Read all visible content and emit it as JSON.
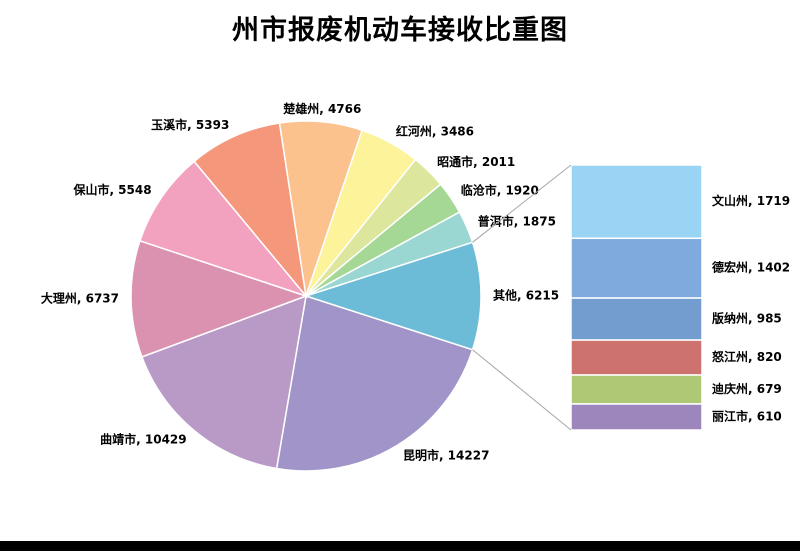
{
  "chart_data": {
    "type": "pie",
    "subtype": "bar-of-pie",
    "title": "州市报废机动车接收比重图",
    "slices": [
      {
        "name": "昆明市",
        "value": 14227,
        "color": "#a094c8"
      },
      {
        "name": "曲靖市",
        "value": 10429,
        "color": "#b99ac7"
      },
      {
        "name": "大理州",
        "value": 6737,
        "color": "#db92b1"
      },
      {
        "name": "保山市",
        "value": 5548,
        "color": "#f2a1bf"
      },
      {
        "name": "玉溪市",
        "value": 5393,
        "color": "#f4977b"
      },
      {
        "name": "楚雄州",
        "value": 4766,
        "color": "#fcc28e"
      },
      {
        "name": "红河州",
        "value": 3486,
        "color": "#fcf39b"
      },
      {
        "name": "昭通市",
        "value": 2011,
        "color": "#dce69c"
      },
      {
        "name": "临沧市",
        "value": 1920,
        "color": "#a6d895"
      },
      {
        "name": "普洱市",
        "value": 1875,
        "color": "#9ad6d2"
      },
      {
        "name": "其他",
        "value": 6215,
        "color": "#6cbcd8"
      }
    ],
    "breakout": {
      "of": "其他",
      "items": [
        {
          "name": "文山州",
          "value": 1719,
          "color": "#9ad4f4"
        },
        {
          "name": "德宏州",
          "value": 1402,
          "color": "#7eaadd"
        },
        {
          "name": "版纳州",
          "value": 985,
          "color": "#739ccf"
        },
        {
          "name": "怒江州",
          "value": 820,
          "color": "#cd726e"
        },
        {
          "name": "迪庆州",
          "value": 679,
          "color": "#aec876"
        },
        {
          "name": "丽江市",
          "value": 610,
          "color": "#9d86bc"
        }
      ]
    }
  }
}
